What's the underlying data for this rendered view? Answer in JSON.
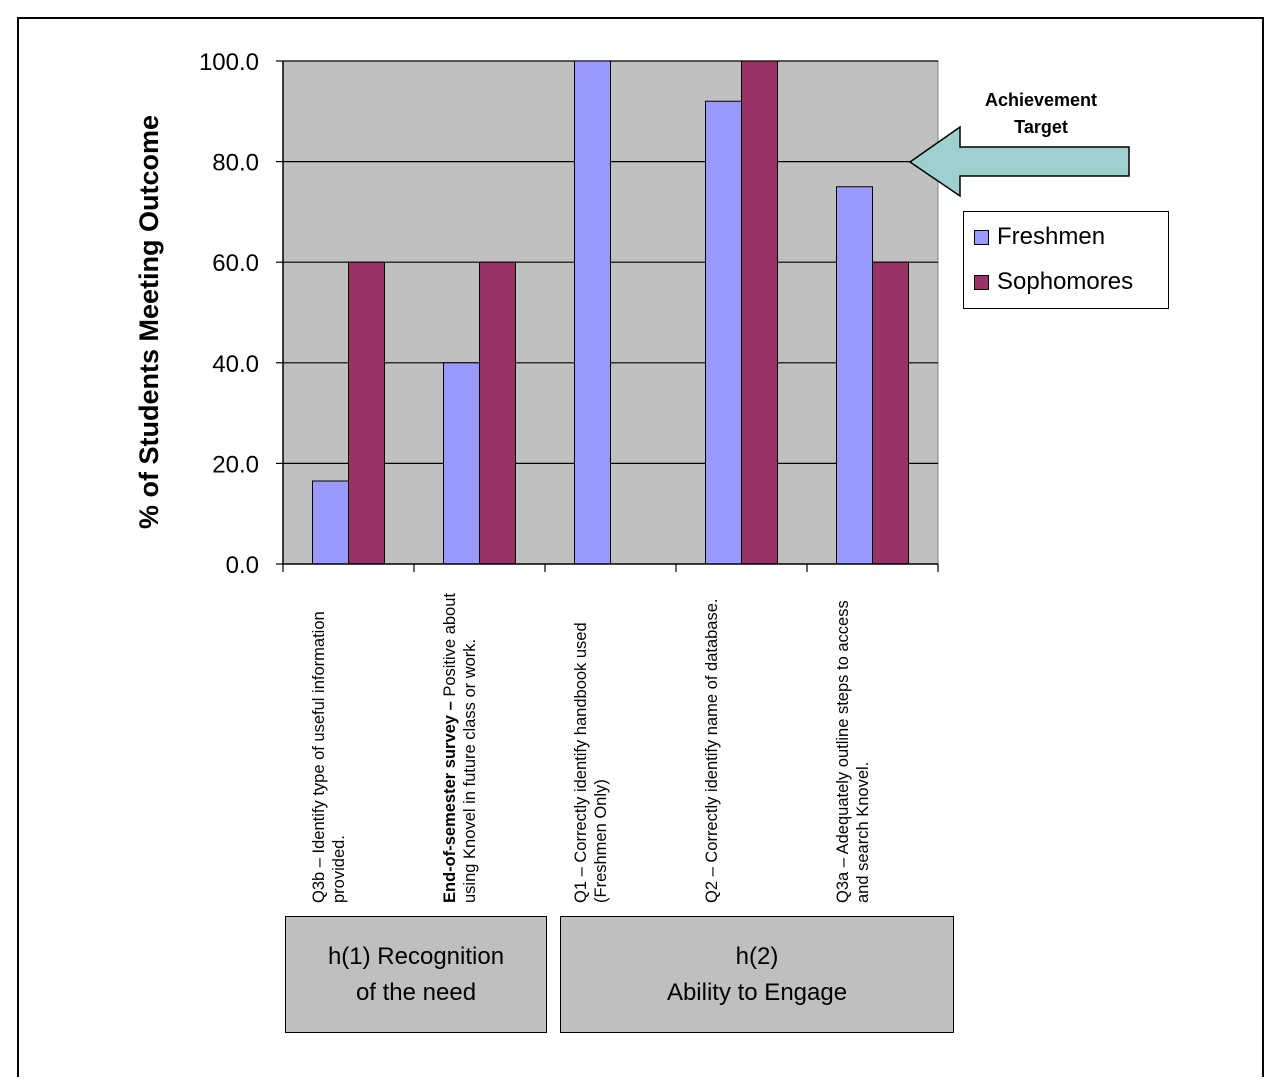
{
  "chart_data": {
    "type": "bar",
    "ylabel": "% of Students Meeting Outcome",
    "ylim": [
      0,
      100
    ],
    "yticks": [
      "100.0",
      "80.0",
      "60.0",
      "40.0",
      "20.0",
      "0.0"
    ],
    "grid": true,
    "legend_position": "right",
    "categories": [
      {
        "bold": "",
        "text": "Q3b – Identify type of useful information provided."
      },
      {
        "bold": "End-of-semester survey –",
        "text": " Positive about using Knovel in future class or work."
      },
      {
        "bold": "",
        "text": "Q1 – Correctly identify handbook used (Freshmen Only)"
      },
      {
        "bold": "",
        "text": "Q2 – Correctly identify name of database."
      },
      {
        "bold": "",
        "text": "Q3a – Adequately outline steps to access and search Knovel."
      }
    ],
    "series": [
      {
        "name": "Freshmen",
        "color": "#9999ff",
        "values": [
          16.5,
          40,
          100,
          92,
          75
        ]
      },
      {
        "name": "Sophomores",
        "color": "#993366",
        "values": [
          60,
          60,
          null,
          100,
          60
        ]
      }
    ],
    "groups": [
      {
        "line1": "h(1) Recognition",
        "line2": "of the need"
      },
      {
        "line1": "h(2)",
        "line2": "Ability to Engage"
      }
    ],
    "annotation": {
      "line1": "Achievement",
      "line2": "Target",
      "value": 80
    }
  }
}
